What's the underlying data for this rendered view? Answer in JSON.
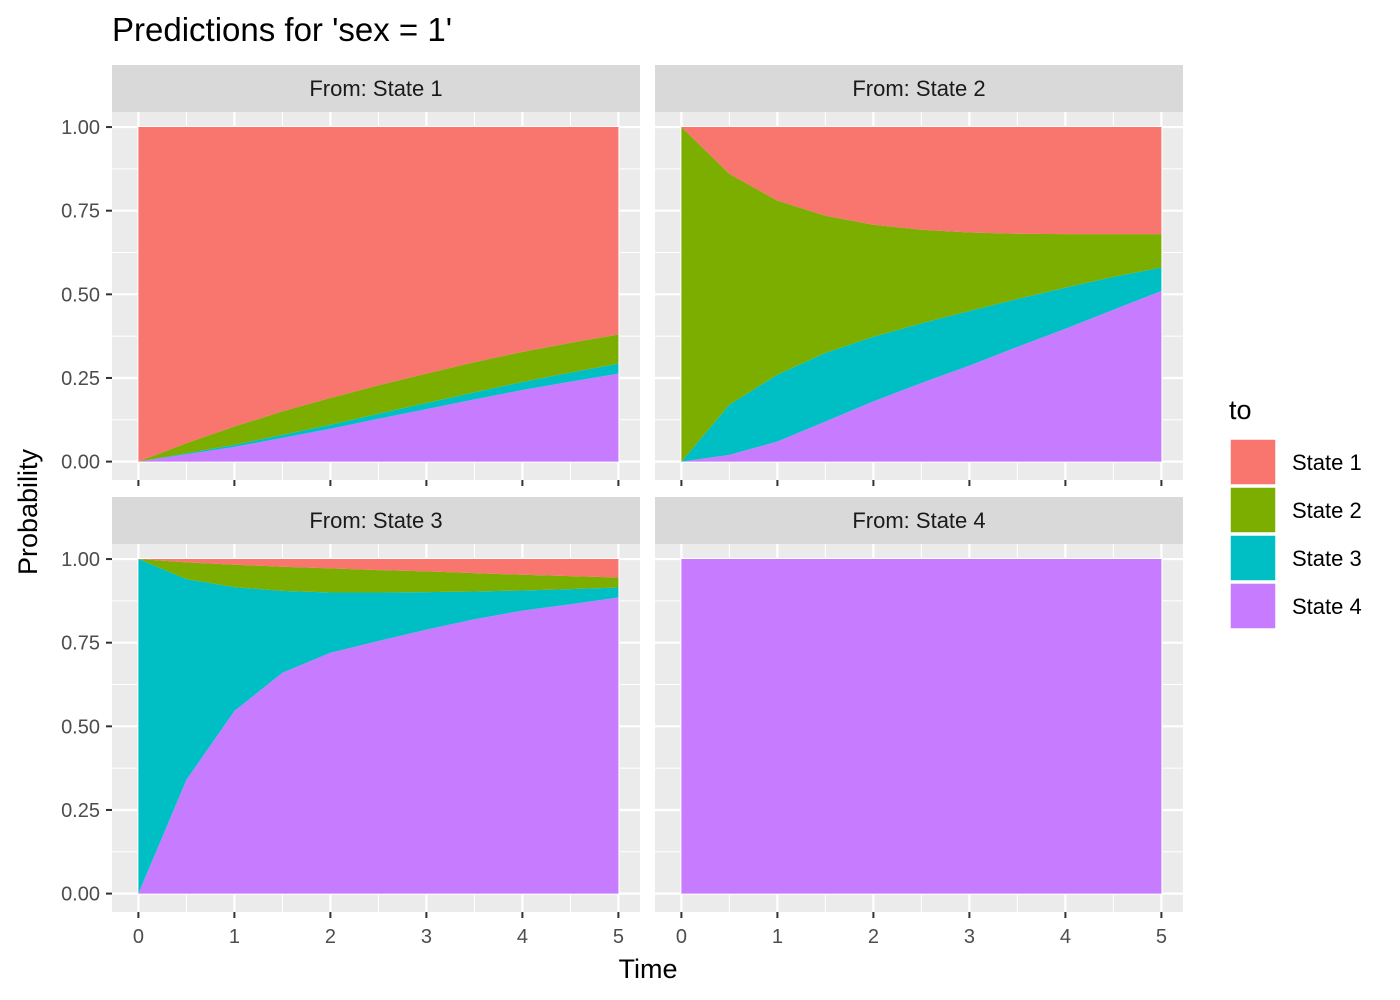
{
  "chart_data": {
    "type": "area",
    "title": "Predictions for 'sex = 1'",
    "xlabel": "Time",
    "ylabel": "Probability",
    "xlim": [
      0,
      5
    ],
    "ylim": [
      0,
      1
    ],
    "x_ticks": [
      "0",
      "1",
      "2",
      "3",
      "4",
      "5"
    ],
    "y_ticks": [
      "0.00",
      "0.25",
      "0.50",
      "0.75",
      "1.00"
    ],
    "grid": true,
    "stacking": "cumulative, State 4 at bottom, then State 3, State 2, State 1 on top",
    "legend": {
      "title": "to",
      "position": "right",
      "entries": [
        {
          "name": "State 1",
          "color": "#F8766D"
        },
        {
          "name": "State 2",
          "color": "#7CAE00"
        },
        {
          "name": "State 3",
          "color": "#00BFC4"
        },
        {
          "name": "State 4",
          "color": "#C77CFF"
        }
      ]
    },
    "x": [
      0,
      0.5,
      1,
      1.5,
      2,
      2.5,
      3,
      3.5,
      4,
      4.5,
      5
    ],
    "panels": [
      {
        "strip": "From: State 1",
        "series": [
          {
            "name": "State 1",
            "values": [
              1.0,
              0.945,
              0.895,
              0.85,
              0.81,
              0.772,
              0.737,
              0.703,
              0.672,
              0.645,
              0.62
            ]
          },
          {
            "name": "State 2",
            "values": [
              0.0,
              0.03,
              0.055,
              0.07,
              0.08,
              0.085,
              0.088,
              0.09,
              0.09,
              0.089,
              0.087
            ]
          },
          {
            "name": "State 3",
            "values": [
              0.0,
              0.003,
              0.006,
              0.009,
              0.012,
              0.015,
              0.018,
              0.021,
              0.024,
              0.027,
              0.03
            ]
          },
          {
            "name": "State 4",
            "values": [
              0.0,
              0.022,
              0.044,
              0.071,
              0.098,
              0.128,
              0.157,
              0.186,
              0.214,
              0.239,
              0.263
            ]
          }
        ]
      },
      {
        "strip": "From: State 2",
        "series": [
          {
            "name": "State 1",
            "values": [
              0.0,
              0.14,
              0.22,
              0.265,
              0.292,
              0.307,
              0.315,
              0.319,
              0.32,
              0.32,
              0.32
            ]
          },
          {
            "name": "State 2",
            "values": [
              1.0,
              0.69,
              0.52,
              0.41,
              0.335,
              0.28,
              0.235,
              0.195,
              0.16,
              0.128,
              0.1
            ]
          },
          {
            "name": "State 3",
            "values": [
              0.0,
              0.15,
              0.2,
              0.205,
              0.193,
              0.178,
              0.163,
              0.143,
              0.123,
              0.098,
              0.07
            ]
          },
          {
            "name": "State 4",
            "values": [
              0.0,
              0.02,
              0.06,
              0.12,
              0.18,
              0.235,
              0.287,
              0.343,
              0.397,
              0.454,
              0.51
            ]
          }
        ]
      },
      {
        "strip": "From: State 3",
        "series": [
          {
            "name": "State 1",
            "values": [
              0.0,
              0.01,
              0.017,
              0.023,
              0.028,
              0.033,
              0.037,
              0.042,
              0.047,
              0.051,
              0.055
            ]
          },
          {
            "name": "State 2",
            "values": [
              0.0,
              0.05,
              0.067,
              0.072,
              0.072,
              0.067,
              0.062,
              0.055,
              0.047,
              0.039,
              0.03
            ]
          },
          {
            "name": "State 3",
            "values": [
              1.0,
              0.6,
              0.37,
              0.245,
              0.18,
              0.145,
              0.112,
              0.083,
              0.06,
              0.045,
              0.03
            ]
          },
          {
            "name": "State 4",
            "values": [
              0.0,
              0.34,
              0.546,
              0.66,
              0.72,
              0.755,
              0.789,
              0.82,
              0.846,
              0.865,
              0.885
            ]
          }
        ]
      },
      {
        "strip": "From: State 4",
        "series": [
          {
            "name": "State 1",
            "values": [
              0,
              0,
              0,
              0,
              0,
              0,
              0,
              0,
              0,
              0,
              0
            ]
          },
          {
            "name": "State 2",
            "values": [
              0,
              0,
              0,
              0,
              0,
              0,
              0,
              0,
              0,
              0,
              0
            ]
          },
          {
            "name": "State 3",
            "values": [
              0,
              0,
              0,
              0,
              0,
              0,
              0,
              0,
              0,
              0,
              0
            ]
          },
          {
            "name": "State 4",
            "values": [
              1,
              1,
              1,
              1,
              1,
              1,
              1,
              1,
              1,
              1,
              1
            ]
          }
        ]
      }
    ]
  }
}
